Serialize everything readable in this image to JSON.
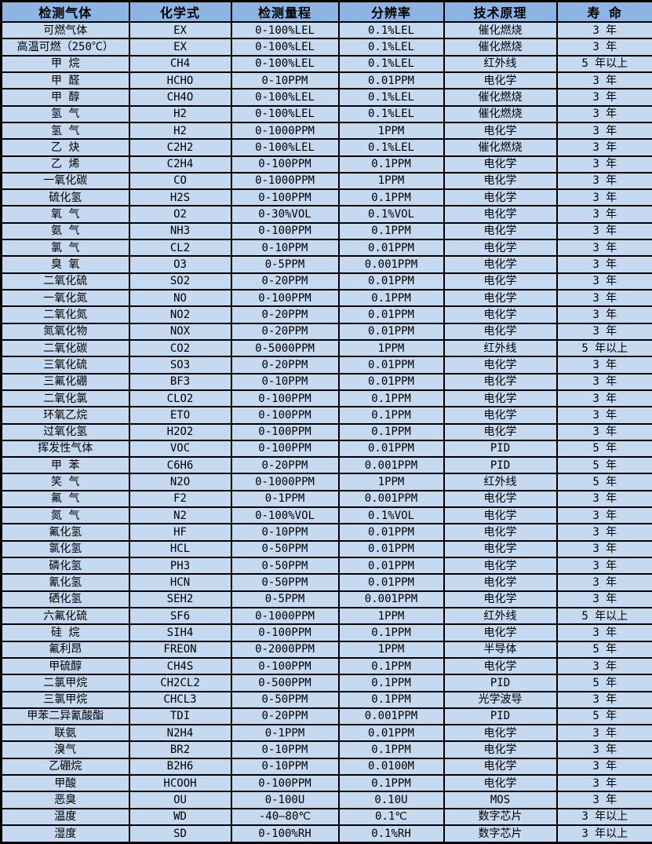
{
  "colors": {
    "header_bg": "#8db4e2",
    "row_bg": "#c5d9f1",
    "border": "#000000",
    "text": "#000000"
  },
  "table": {
    "columns": [
      {
        "key": "gas",
        "label": "检测气体"
      },
      {
        "key": "formula",
        "label": "化学式"
      },
      {
        "key": "range",
        "label": "检测量程"
      },
      {
        "key": "resolution",
        "label": "分辨率"
      },
      {
        "key": "principle",
        "label": "技术原理"
      },
      {
        "key": "lifespan",
        "label": "寿 命"
      }
    ],
    "rows": [
      [
        "可燃气体",
        "EX",
        "0-100%LEL",
        "0.1%LEL",
        "催化燃烧",
        "3 年"
      ],
      [
        "高温可燃（250℃）",
        "EX",
        "0-100%LEL",
        "0.1%LEL",
        "催化燃烧",
        "3 年"
      ],
      [
        "甲 烷",
        "CH4",
        "0-100%LEL",
        "0.1%LEL",
        "红外线",
        "5 年以上"
      ],
      [
        "甲 醛",
        "HCHO",
        "0-10PPM",
        "0.01PPM",
        "电化学",
        "3 年"
      ],
      [
        "甲 醇",
        "CH4O",
        "0-100%LEL",
        "0.1%LEL",
        "催化燃烧",
        "3 年"
      ],
      [
        "氢 气",
        "H2",
        "0-100%LEL",
        "0.1%LEL",
        "催化燃烧",
        "3 年"
      ],
      [
        "氢 气",
        "H2",
        "0-1000PPM",
        "1PPM",
        "电化学",
        "3 年"
      ],
      [
        "乙 炔",
        "C2H2",
        "0-100%LEL",
        "0.1%LEL",
        "催化燃烧",
        "3 年"
      ],
      [
        "乙 烯",
        "C2H4",
        "0-100PPM",
        "0.1PPM",
        "电化学",
        "3 年"
      ],
      [
        "一氧化碳",
        "CO",
        "0-1000PPM",
        "1PPM",
        "电化学",
        "3 年"
      ],
      [
        "硫化氢",
        "H2S",
        "0-100PPM",
        "0.1PPM",
        "电化学",
        "3 年"
      ],
      [
        "氧 气",
        "O2",
        "0-30%VOL",
        "0.1%VOL",
        "电化学",
        "3 年"
      ],
      [
        "氨 气",
        "NH3",
        "0-100PPM",
        "0.1PPM",
        "电化学",
        "3 年"
      ],
      [
        "氯 气",
        "CL2",
        "0-10PPM",
        "0.01PPM",
        "电化学",
        "3 年"
      ],
      [
        "臭 氧",
        "O3",
        "0-5PPM",
        "0.001PPM",
        "电化学",
        "3 年"
      ],
      [
        "二氧化硫",
        "SO2",
        "0-20PPM",
        "0.01PPM",
        "电化学",
        "3 年"
      ],
      [
        "一氧化氮",
        "NO",
        "0-100PPM",
        "0.1PPM",
        "电化学",
        "3 年"
      ],
      [
        "二氧化氮",
        "NO2",
        "0-20PPM",
        "0.01PPM",
        "电化学",
        "3 年"
      ],
      [
        "氮氧化物",
        "NOX",
        "0-20PPM",
        "0.01PPM",
        "电化学",
        "3 年"
      ],
      [
        "二氧化碳",
        "CO2",
        "0-5000PPM",
        "1PPM",
        "红外线",
        "5 年以上"
      ],
      [
        "三氧化硫",
        "SO3",
        "0-20PPM",
        "0.01PPM",
        "电化学",
        "3 年"
      ],
      [
        "三氟化硼",
        "BF3",
        "0-10PPM",
        "0.01PPM",
        "电化学",
        "3 年"
      ],
      [
        "二氧化氯",
        "CLO2",
        "0-100PPM",
        "0.1PPM",
        "电化学",
        "3 年"
      ],
      [
        "环氧乙烷",
        "ETO",
        "0-100PPM",
        "0.1PPM",
        "电化学",
        "3 年"
      ],
      [
        "过氧化氢",
        "H2O2",
        "0-100PPM",
        "0.1PPM",
        "电化学",
        "3 年"
      ],
      [
        "挥发性气体",
        "VOC",
        "0-100PPM",
        "0.01PPM",
        "PID",
        "5 年"
      ],
      [
        "甲 苯",
        "C6H6",
        "0-20PPM",
        "0.001PPM",
        "PID",
        "5 年"
      ],
      [
        "笑 气",
        "N2O",
        "0-1000PPM",
        "1PPM",
        "红外线",
        "5 年"
      ],
      [
        "氟 气",
        "F2",
        "0-1PPM",
        "0.001PPM",
        "电化学",
        "3 年"
      ],
      [
        "氮 气",
        "N2",
        "0-100%VOL",
        "0.1%VOL",
        "电化学",
        "3 年"
      ],
      [
        "氟化氢",
        "HF",
        "0-10PPM",
        "0.01PPM",
        "电化学",
        "3 年"
      ],
      [
        "氯化氢",
        "HCL",
        "0-50PPM",
        "0.01PPM",
        "电化学",
        "3 年"
      ],
      [
        "磷化氢",
        "PH3",
        "0-50PPM",
        "0.01PPM",
        "电化学",
        "3 年"
      ],
      [
        "氰化氢",
        "HCN",
        "0-50PPM",
        "0.01PPM",
        "电化学",
        "3 年"
      ],
      [
        "硒化氢",
        "SEH2",
        "0-5PPM",
        "0.001PPM",
        "电化学",
        "3 年"
      ],
      [
        "六氟化硫",
        "SF6",
        "0-1000PPM",
        "1PPM",
        "红外线",
        "5 年以上"
      ],
      [
        "硅 烷",
        "SIH4",
        "0-100PPM",
        "0.1PPM",
        "电化学",
        "3 年"
      ],
      [
        "氟利昂",
        "FREON",
        "0-2000PPM",
        "1PPM",
        "半导体",
        "5 年"
      ],
      [
        "甲硫醇",
        "CH4S",
        "0-100PPM",
        "0.1PPM",
        "电化学",
        "3 年"
      ],
      [
        "二氯甲烷",
        "CH2CL2",
        "0-500PPM",
        "0.1PPM",
        "PID",
        "5 年"
      ],
      [
        "三氯甲烷",
        "CHCL3",
        "0-50PPM",
        "0.1PPM",
        "光学波导",
        "3 年"
      ],
      [
        "甲苯二异氰酸酯",
        "TDI",
        "0-20PPM",
        "0.001PPM",
        "PID",
        "5 年"
      ],
      [
        "联氨",
        "N2H4",
        "0-1PPM",
        "0.01PPM",
        "电化学",
        "3 年"
      ],
      [
        "溴气",
        "BR2",
        "0-10PPM",
        "0.1PPM",
        "电化学",
        "3 年"
      ],
      [
        "乙硼烷",
        "B2H6",
        "0-10PPM",
        "0.0100M",
        "电化学",
        "3 年"
      ],
      [
        "甲酸",
        "HCOOH",
        "0-100PPM",
        "0.1PPM",
        "电化学",
        "3 年"
      ],
      [
        "恶臭",
        "OU",
        "0-100U",
        "0.10U",
        "MOS",
        "3 年"
      ],
      [
        "温度",
        "WD",
        "-40—80℃",
        "0.1℃",
        "数字芯片",
        "3 年以上"
      ],
      [
        "湿度",
        "SD",
        "0-100%RH",
        "0.1%RH",
        "数字芯片",
        "3 年以上"
      ]
    ]
  }
}
